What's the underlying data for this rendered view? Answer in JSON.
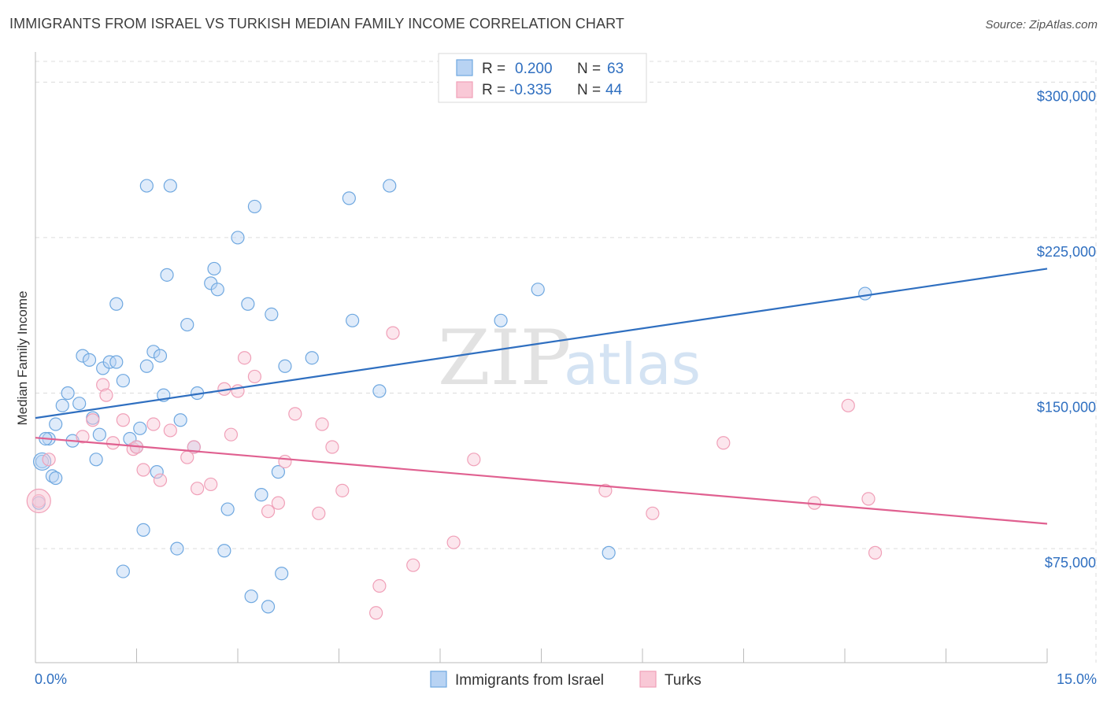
{
  "title": "IMMIGRANTS FROM ISRAEL VS TURKISH MEDIAN FAMILY INCOME CORRELATION CHART",
  "source": "Source: ZipAtlas.com",
  "watermark": {
    "zip": "ZIP",
    "atlas": "atlas"
  },
  "legend_box": {
    "rows": [
      {
        "r_label": "R =",
        "r_value": "0.200",
        "n_label": "N =",
        "n_value": "63"
      },
      {
        "r_label": "R =",
        "r_value": "-0.335",
        "n_label": "N =",
        "n_value": "44"
      }
    ]
  },
  "chart_data": {
    "type": "scatter",
    "title": "IMMIGRANTS FROM ISRAEL VS TURKISH MEDIAN FAMILY INCOME CORRELATION CHART",
    "xlabel": "",
    "ylabel": "Median Family Income",
    "xlim": [
      0,
      15
    ],
    "ylim": [
      20000,
      310000
    ],
    "x_tick_labels": [
      "0.0%",
      "15.0%"
    ],
    "y_ticks": [
      75000,
      150000,
      225000,
      300000
    ],
    "y_tick_labels": [
      "$75,000",
      "$150,000",
      "$225,000",
      "$300,000"
    ],
    "grid": true,
    "legend_position": "top-center",
    "colors": {
      "israel": "#6fa8e0",
      "turks": "#f0a0b8",
      "israel_line": "#2f6fc0",
      "turks_line": "#e06090"
    },
    "series": [
      {
        "name": "Immigrants from Israel",
        "color": "#6fa8e0",
        "trend": {
          "x": [
            0,
            15
          ],
          "y": [
            138000,
            210000
          ]
        },
        "points": [
          [
            0.1,
            117000
          ],
          [
            0.2,
            128000
          ],
          [
            0.25,
            110000
          ],
          [
            0.3,
            109000
          ],
          [
            0.3,
            135000
          ],
          [
            0.4,
            144000
          ],
          [
            0.48,
            150000
          ],
          [
            0.55,
            127000
          ],
          [
            0.65,
            145000
          ],
          [
            0.7,
            168000
          ],
          [
            0.8,
            166000
          ],
          [
            0.85,
            138000
          ],
          [
            0.9,
            118000
          ],
          [
            0.95,
            130000
          ],
          [
            1.0,
            162000
          ],
          [
            1.1,
            165000
          ],
          [
            1.2,
            165000
          ],
          [
            1.2,
            193000
          ],
          [
            1.3,
            64000
          ],
          [
            1.3,
            156000
          ],
          [
            1.4,
            128000
          ],
          [
            1.5,
            124000
          ],
          [
            1.55,
            133000
          ],
          [
            1.6,
            84000
          ],
          [
            1.65,
            163000
          ],
          [
            1.65,
            250000
          ],
          [
            1.75,
            170000
          ],
          [
            1.8,
            112000
          ],
          [
            1.85,
            168000
          ],
          [
            1.9,
            149000
          ],
          [
            1.95,
            207000
          ],
          [
            2.0,
            250000
          ],
          [
            2.1,
            75000
          ],
          [
            2.15,
            137000
          ],
          [
            2.25,
            183000
          ],
          [
            2.35,
            124000
          ],
          [
            2.4,
            150000
          ],
          [
            2.6,
            203000
          ],
          [
            2.65,
            210000
          ],
          [
            2.7,
            200000
          ],
          [
            2.8,
            74000
          ],
          [
            2.85,
            94000
          ],
          [
            3.0,
            225000
          ],
          [
            3.15,
            193000
          ],
          [
            3.2,
            52000
          ],
          [
            3.25,
            240000
          ],
          [
            3.35,
            101000
          ],
          [
            3.45,
            47000
          ],
          [
            3.5,
            188000
          ],
          [
            3.6,
            112000
          ],
          [
            3.65,
            63000
          ],
          [
            3.7,
            163000
          ],
          [
            4.1,
            167000
          ],
          [
            4.65,
            244000
          ],
          [
            4.7,
            185000
          ],
          [
            5.1,
            151000
          ],
          [
            5.25,
            250000
          ],
          [
            6.9,
            185000
          ],
          [
            7.45,
            200000
          ],
          [
            8.5,
            73000
          ],
          [
            0.05,
            97000
          ],
          [
            0.15,
            128000
          ],
          [
            12.3,
            198000
          ]
        ]
      },
      {
        "name": "Turks",
        "color": "#f0a0b8",
        "trend": {
          "x": [
            0,
            15
          ],
          "y": [
            128500,
            87000
          ]
        },
        "points": [
          [
            0.05,
            98000
          ],
          [
            0.2,
            118000
          ],
          [
            0.7,
            129000
          ],
          [
            0.85,
            137000
          ],
          [
            1.0,
            154000
          ],
          [
            1.05,
            149000
          ],
          [
            1.15,
            126000
          ],
          [
            1.3,
            137000
          ],
          [
            1.45,
            123000
          ],
          [
            1.6,
            113000
          ],
          [
            1.75,
            135000
          ],
          [
            1.85,
            108000
          ],
          [
            2.0,
            132000
          ],
          [
            2.25,
            119000
          ],
          [
            2.35,
            124000
          ],
          [
            2.4,
            104000
          ],
          [
            2.6,
            106000
          ],
          [
            2.8,
            152000
          ],
          [
            2.9,
            130000
          ],
          [
            3.0,
            151000
          ],
          [
            3.1,
            167000
          ],
          [
            3.25,
            158000
          ],
          [
            3.45,
            93000
          ],
          [
            3.6,
            97000
          ],
          [
            3.7,
            117000
          ],
          [
            3.85,
            140000
          ],
          [
            4.2,
            92000
          ],
          [
            4.25,
            135000
          ],
          [
            4.4,
            124000
          ],
          [
            4.55,
            103000
          ],
          [
            5.05,
            44000
          ],
          [
            5.1,
            57000
          ],
          [
            5.3,
            179000
          ],
          [
            5.6,
            67000
          ],
          [
            6.2,
            78000
          ],
          [
            6.5,
            118000
          ],
          [
            8.45,
            103000
          ],
          [
            9.15,
            92000
          ],
          [
            10.2,
            126000
          ],
          [
            11.55,
            97000
          ],
          [
            12.05,
            144000
          ],
          [
            12.35,
            99000
          ],
          [
            12.45,
            73000
          ],
          [
            1.5,
            124000
          ]
        ]
      }
    ]
  },
  "bottom_legend": [
    "Immigrants from Israel",
    "Turks"
  ]
}
